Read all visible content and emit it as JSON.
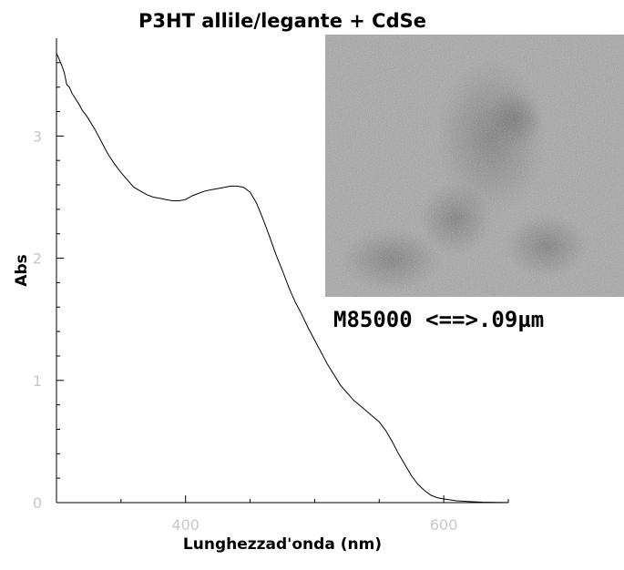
{
  "chart_data": {
    "type": "line",
    "title": "P3HT allile/legante + CdSe",
    "xlabel": "Lunghezzad'onda (nm)",
    "ylabel": "Abs",
    "xlim": [
      300,
      650
    ],
    "ylim": [
      0,
      3.8
    ],
    "x_ticks": [
      400,
      600
    ],
    "y_ticks": [
      0,
      1,
      2,
      3
    ],
    "grid": false,
    "legend": "none",
    "series": [
      {
        "color": "#000000",
        "x": [
          300,
          302,
          304,
          306,
          308,
          310,
          312,
          315,
          318,
          320,
          323,
          326,
          330,
          335,
          340,
          345,
          350,
          355,
          360,
          365,
          370,
          375,
          380,
          385,
          390,
          395,
          400,
          405,
          410,
          415,
          420,
          425,
          430,
          435,
          440,
          445,
          450,
          455,
          460,
          465,
          470,
          475,
          480,
          485,
          490,
          495,
          500,
          510,
          520,
          530,
          540,
          550,
          555,
          560,
          565,
          570,
          575,
          580,
          585,
          590,
          595,
          600,
          610,
          620,
          630,
          640,
          650
        ],
        "y": [
          3.68,
          3.63,
          3.58,
          3.52,
          3.42,
          3.4,
          3.35,
          3.3,
          3.25,
          3.21,
          3.17,
          3.12,
          3.05,
          2.95,
          2.85,
          2.77,
          2.7,
          2.64,
          2.58,
          2.55,
          2.52,
          2.5,
          2.49,
          2.48,
          2.47,
          2.47,
          2.48,
          2.51,
          2.53,
          2.55,
          2.56,
          2.57,
          2.58,
          2.59,
          2.59,
          2.58,
          2.54,
          2.45,
          2.32,
          2.18,
          2.03,
          1.9,
          1.76,
          1.64,
          1.54,
          1.43,
          1.33,
          1.13,
          0.96,
          0.84,
          0.75,
          0.66,
          0.59,
          0.5,
          0.4,
          0.31,
          0.22,
          0.15,
          0.1,
          0.06,
          0.04,
          0.03,
          0.015,
          0.008,
          0.004,
          0.002,
          0.001
        ]
      }
    ]
  },
  "inset": {
    "caption": "M85000 <==>.09µm"
  }
}
